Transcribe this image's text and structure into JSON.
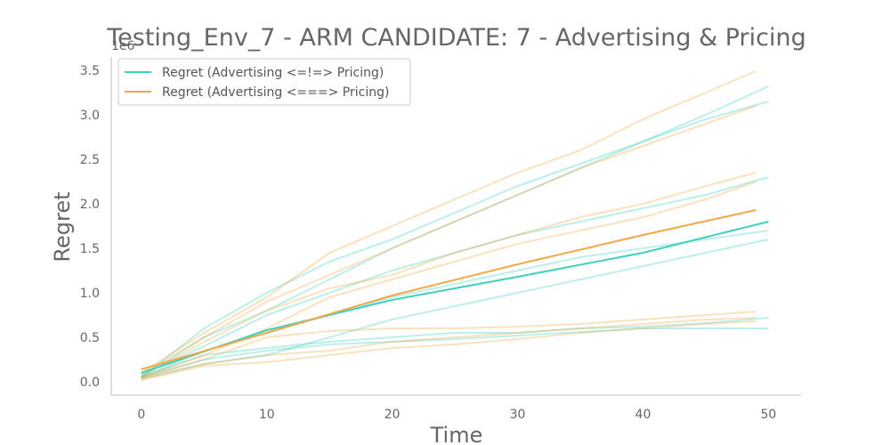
{
  "chart_data": {
    "type": "line",
    "title": "Testing_Env_7 - ARM CANDIDATE: 7 - Advertising & Pricing",
    "xlabel": "Time",
    "ylabel": "Regret",
    "y_scale_label": "1e6",
    "xlim": [
      -2.4,
      52.6
    ],
    "ylim": [
      -0.15,
      3.65
    ],
    "x_ticks": [
      0,
      10,
      20,
      30,
      40,
      50
    ],
    "y_ticks": [
      0.0,
      0.5,
      1.0,
      1.5,
      2.0,
      2.5,
      3.0,
      3.5
    ],
    "y_tick_labels": [
      "0.0",
      "0.5",
      "1.0",
      "1.5",
      "2.0",
      "2.5",
      "3.0",
      "3.5"
    ],
    "legend_position": "top-left",
    "series": [
      {
        "name": "Regret (Advertising <=!=> Pricing)",
        "color": "#40d0c0",
        "mean": {
          "x": [
            0,
            10,
            20,
            30,
            40,
            50
          ],
          "y": [
            0.1,
            0.58,
            0.92,
            1.18,
            1.45,
            1.8
          ]
        },
        "runs": [
          {
            "x": [
              0,
              5,
              10,
              15,
              20,
              25,
              30,
              35,
              40,
              45,
              50
            ],
            "y": [
              0.05,
              0.6,
              1.0,
              1.35,
              1.6,
              1.9,
              2.2,
              2.45,
              2.7,
              3.0,
              3.32
            ]
          },
          {
            "x": [
              0,
              5,
              10,
              15,
              20,
              25,
              30,
              35,
              40,
              45,
              50
            ],
            "y": [
              0.05,
              0.5,
              0.8,
              1.15,
              1.5,
              1.8,
              2.1,
              2.4,
              2.7,
              2.95,
              3.15
            ]
          },
          {
            "x": [
              0,
              5,
              10,
              15,
              20,
              25,
              30,
              35,
              40,
              45,
              50
            ],
            "y": [
              0.08,
              0.4,
              0.75,
              1.0,
              1.25,
              1.45,
              1.65,
              1.8,
              1.95,
              2.1,
              2.3
            ]
          },
          {
            "x": [
              0,
              5,
              10,
              15,
              20,
              25,
              30,
              35,
              40,
              45,
              50
            ],
            "y": [
              0.05,
              0.35,
              0.55,
              0.75,
              0.95,
              1.1,
              1.25,
              1.4,
              1.5,
              1.6,
              1.7
            ]
          },
          {
            "x": [
              0,
              5,
              10,
              15,
              20,
              25,
              30,
              35,
              40,
              45,
              50
            ],
            "y": [
              0.04,
              0.2,
              0.3,
              0.5,
              0.7,
              0.85,
              1.0,
              1.15,
              1.3,
              1.45,
              1.6
            ]
          },
          {
            "x": [
              0,
              5,
              10,
              15,
              20,
              25,
              30,
              35,
              40,
              45,
              50
            ],
            "y": [
              0.06,
              0.3,
              0.38,
              0.45,
              0.5,
              0.55,
              0.55,
              0.6,
              0.62,
              0.66,
              0.72
            ]
          },
          {
            "x": [
              0,
              5,
              10,
              15,
              20,
              25,
              30,
              35,
              40,
              45,
              50
            ],
            "y": [
              0.05,
              0.25,
              0.35,
              0.42,
              0.45,
              0.48,
              0.52,
              0.56,
              0.6,
              0.6,
              0.6
            ]
          }
        ]
      },
      {
        "name": "Regret (Advertising <===> Pricing)",
        "color": "#f0a848",
        "mean": {
          "x": [
            0,
            10,
            20,
            30,
            40,
            49
          ],
          "y": [
            0.14,
            0.55,
            0.97,
            1.32,
            1.65,
            1.93
          ]
        },
        "runs": [
          {
            "x": [
              0,
              5,
              10,
              15,
              20,
              25,
              30,
              35,
              40,
              45,
              49
            ],
            "y": [
              0.1,
              0.55,
              0.95,
              1.45,
              1.75,
              2.05,
              2.35,
              2.6,
              2.95,
              3.25,
              3.49
            ]
          },
          {
            "x": [
              0,
              5,
              10,
              15,
              20,
              25,
              30,
              35,
              40,
              45,
              49
            ],
            "y": [
              0.08,
              0.5,
              0.9,
              1.2,
              1.5,
              1.8,
              2.1,
              2.4,
              2.65,
              2.9,
              3.1
            ]
          },
          {
            "x": [
              0,
              5,
              10,
              15,
              20,
              25,
              30,
              35,
              40,
              45,
              49
            ],
            "y": [
              0.06,
              0.45,
              0.8,
              1.05,
              1.2,
              1.45,
              1.65,
              1.85,
              2.0,
              2.2,
              2.35
            ]
          },
          {
            "x": [
              0,
              5,
              10,
              15,
              20,
              25,
              30,
              35,
              40,
              45,
              49
            ],
            "y": [
              0.05,
              0.3,
              0.6,
              0.95,
              1.15,
              1.35,
              1.55,
              1.7,
              1.85,
              2.05,
              2.25
            ]
          },
          {
            "x": [
              0,
              5,
              10,
              15,
              20,
              25,
              30,
              35,
              40,
              45,
              49
            ],
            "y": [
              0.04,
              0.25,
              0.5,
              0.57,
              0.6,
              0.6,
              0.62,
              0.65,
              0.7,
              0.75,
              0.79
            ]
          },
          {
            "x": [
              0,
              5,
              10,
              15,
              20,
              25,
              30,
              35,
              40,
              45,
              49
            ],
            "y": [
              0.03,
              0.2,
              0.3,
              0.35,
              0.45,
              0.5,
              0.55,
              0.6,
              0.65,
              0.7,
              0.72
            ]
          },
          {
            "x": [
              0,
              5,
              10,
              15,
              20,
              25,
              30,
              35,
              40,
              45,
              49
            ],
            "y": [
              0.02,
              0.18,
              0.22,
              0.3,
              0.38,
              0.42,
              0.48,
              0.55,
              0.6,
              0.65,
              0.68
            ]
          }
        ]
      }
    ]
  }
}
